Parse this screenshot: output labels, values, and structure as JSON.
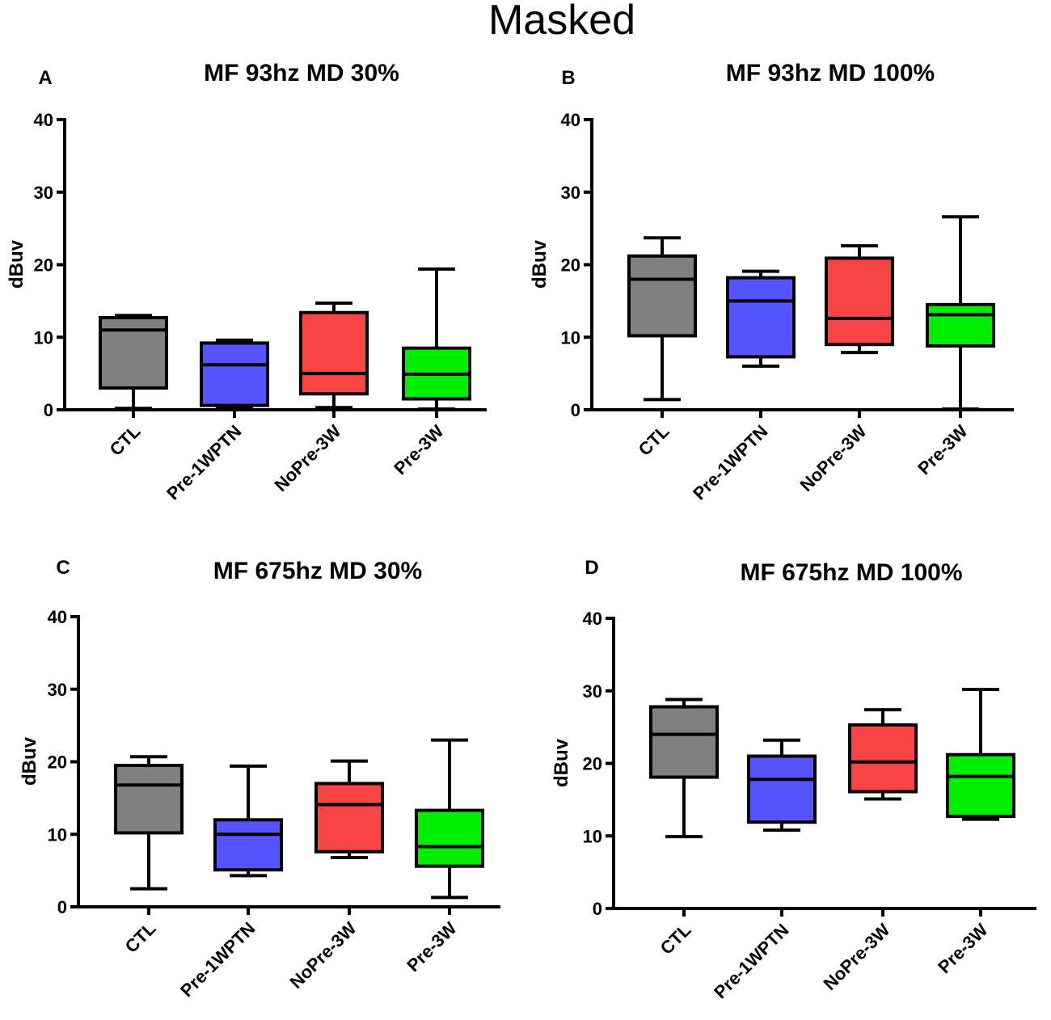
{
  "figure_title": "Masked",
  "chart_data": [
    {
      "type": "box",
      "panel": "A",
      "title": "MF 93hz  MD 30%",
      "ylabel": "dBuv",
      "xlabel": "",
      "ylim": [
        0,
        40
      ],
      "yticks": [
        0,
        10,
        20,
        30,
        40
      ],
      "categories": [
        "CTL",
        "Pre-1WPTN",
        "NoPre-3W",
        "Pre-3W"
      ],
      "boxes": [
        {
          "category": "CTL",
          "min": 0.2,
          "q1": 3.0,
          "median": 11.0,
          "q3": 12.7,
          "max": 13.0,
          "color": "#808080"
        },
        {
          "category": "Pre-1WPTN",
          "min": 0.4,
          "q1": 0.6,
          "median": 6.2,
          "q3": 9.2,
          "max": 9.6,
          "color": "#5555ff"
        },
        {
          "category": "NoPre-3W",
          "min": 0.3,
          "q1": 2.2,
          "median": 5.0,
          "q3": 13.4,
          "max": 14.7,
          "color": "#f84444"
        },
        {
          "category": "Pre-3W",
          "min": 0.1,
          "q1": 1.5,
          "median": 4.9,
          "q3": 8.5,
          "max": 19.4,
          "color": "#00ee00"
        }
      ]
    },
    {
      "type": "box",
      "panel": "B",
      "title": "MF 93hz  MD 100%",
      "ylabel": "dBuv",
      "xlabel": "",
      "ylim": [
        0,
        40
      ],
      "yticks": [
        0,
        10,
        20,
        30,
        40
      ],
      "categories": [
        "CTL",
        "Pre-1WPTN",
        "NoPre-3W",
        "Pre-3W"
      ],
      "boxes": [
        {
          "category": "CTL",
          "min": 1.4,
          "q1": 10.2,
          "median": 18.0,
          "q3": 21.2,
          "max": 23.7,
          "color": "#808080"
        },
        {
          "category": "Pre-1WPTN",
          "min": 6.0,
          "q1": 7.3,
          "median": 15.0,
          "q3": 18.2,
          "max": 19.1,
          "color": "#5555ff"
        },
        {
          "category": "NoPre-3W",
          "min": 7.9,
          "q1": 9.0,
          "median": 12.6,
          "q3": 20.9,
          "max": 22.6,
          "color": "#f84444"
        },
        {
          "category": "Pre-3W",
          "min": 0.1,
          "q1": 8.8,
          "median": 13.1,
          "q3": 14.5,
          "max": 26.6,
          "color": "#00ee00"
        }
      ]
    },
    {
      "type": "box",
      "panel": "C",
      "title": "MF 675hz  MD 30%",
      "ylabel": "dBuv",
      "xlabel": "",
      "ylim": [
        0,
        40
      ],
      "yticks": [
        0,
        10,
        20,
        30,
        40
      ],
      "categories": [
        "CTL",
        "Pre-1WPTN",
        "NoPre-3W",
        "Pre-3W"
      ],
      "boxes": [
        {
          "category": "CTL",
          "min": 2.5,
          "q1": 10.2,
          "median": 16.8,
          "q3": 19.5,
          "max": 20.7,
          "color": "#808080"
        },
        {
          "category": "Pre-1WPTN",
          "min": 4.3,
          "q1": 5.1,
          "median": 10.0,
          "q3": 12.0,
          "max": 19.4,
          "color": "#5555ff"
        },
        {
          "category": "NoPre-3W",
          "min": 6.8,
          "q1": 7.6,
          "median": 14.1,
          "q3": 17.0,
          "max": 20.1,
          "color": "#f84444"
        },
        {
          "category": "Pre-3W",
          "min": 1.3,
          "q1": 5.6,
          "median": 8.3,
          "q3": 13.3,
          "max": 23.0,
          "color": "#00ee00"
        }
      ]
    },
    {
      "type": "box",
      "panel": "D",
      "title": "MF 675hz  MD 100%",
      "ylabel": "dBuv",
      "xlabel": "",
      "ylim": [
        0,
        40
      ],
      "yticks": [
        0,
        10,
        20,
        30,
        40
      ],
      "categories": [
        "CTL",
        "Pre-1WPTN",
        "NoPre-3W",
        "Pre-3W"
      ],
      "boxes": [
        {
          "category": "CTL",
          "min": 9.9,
          "q1": 18.1,
          "median": 24.0,
          "q3": 27.8,
          "max": 28.8,
          "color": "#808080"
        },
        {
          "category": "Pre-1WPTN",
          "min": 10.8,
          "q1": 11.9,
          "median": 17.8,
          "q3": 21.0,
          "max": 23.2,
          "color": "#5555ff"
        },
        {
          "category": "NoPre-3W",
          "min": 15.1,
          "q1": 16.1,
          "median": 20.2,
          "q3": 25.3,
          "max": 27.4,
          "color": "#f84444"
        },
        {
          "category": "Pre-3W",
          "min": 12.3,
          "q1": 12.7,
          "median": 18.2,
          "q3": 21.2,
          "max": 30.2,
          "color": "#00ee00"
        }
      ]
    }
  ]
}
